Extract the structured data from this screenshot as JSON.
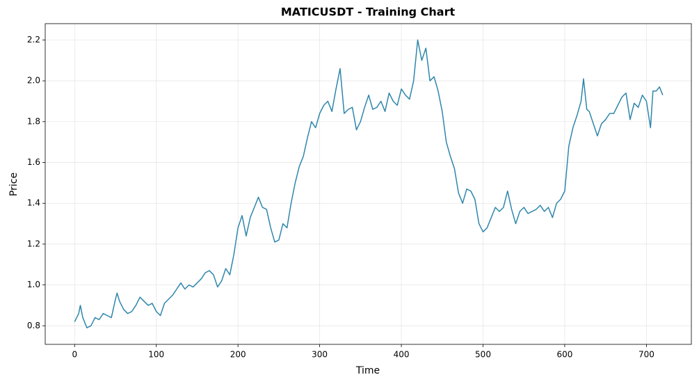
{
  "chart_data": {
    "type": "line",
    "title": "MATICUSDT - Training Chart",
    "x_label": "Time",
    "y_label": "Price",
    "color": "#2e86ab",
    "grid": true,
    "xlim": [
      -36,
      755
    ],
    "ylim": [
      0.709,
      2.28
    ],
    "xticks": [
      0,
      100,
      200,
      300,
      400,
      500,
      600,
      700
    ],
    "yticks": [
      0.8,
      {
        "value": 1.0,
        "label": "1.0"
      },
      1.2,
      1.4,
      1.6,
      1.8,
      {
        "value": 2.0,
        "label": "2.0"
      },
      2.2
    ],
    "x": [
      0,
      5,
      7,
      10,
      15,
      20,
      25,
      30,
      35,
      40,
      45,
      50,
      52,
      55,
      60,
      65,
      70,
      75,
      80,
      85,
      90,
      95,
      100,
      105,
      110,
      115,
      120,
      125,
      130,
      135,
      140,
      145,
      150,
      155,
      160,
      165,
      170,
      175,
      180,
      185,
      190,
      195,
      200,
      205,
      210,
      215,
      220,
      225,
      230,
      235,
      240,
      245,
      250,
      255,
      260,
      265,
      270,
      275,
      280,
      285,
      290,
      295,
      300,
      305,
      310,
      315,
      320,
      325,
      330,
      335,
      340,
      345,
      350,
      355,
      360,
      365,
      370,
      375,
      380,
      385,
      390,
      395,
      400,
      405,
      410,
      415,
      420,
      425,
      430,
      435,
      440,
      445,
      450,
      455,
      460,
      465,
      470,
      475,
      480,
      485,
      490,
      495,
      500,
      505,
      510,
      515,
      520,
      525,
      530,
      535,
      540,
      545,
      550,
      555,
      560,
      565,
      570,
      575,
      580,
      585,
      590,
      595,
      600,
      605,
      610,
      615,
      620,
      623,
      627,
      630,
      635,
      640,
      645,
      650,
      655,
      660,
      665,
      670,
      675,
      680,
      685,
      690,
      695,
      700,
      705,
      708,
      712,
      716,
      720
    ],
    "values": [
      0.82,
      0.86,
      0.9,
      0.84,
      0.79,
      0.8,
      0.84,
      0.83,
      0.86,
      0.85,
      0.84,
      0.93,
      0.96,
      0.92,
      0.88,
      0.86,
      0.87,
      0.9,
      0.94,
      0.92,
      0.9,
      0.91,
      0.87,
      0.85,
      0.91,
      0.93,
      0.95,
      0.98,
      1.01,
      0.98,
      1.0,
      0.99,
      1.01,
      1.03,
      1.06,
      1.07,
      1.05,
      0.99,
      1.02,
      1.08,
      1.05,
      1.15,
      1.28,
      1.34,
      1.24,
      1.33,
      1.38,
      1.43,
      1.38,
      1.37,
      1.28,
      1.21,
      1.22,
      1.3,
      1.28,
      1.4,
      1.5,
      1.58,
      1.63,
      1.72,
      1.8,
      1.77,
      1.84,
      1.88,
      1.9,
      1.85,
      1.96,
      2.06,
      1.84,
      1.86,
      1.87,
      1.76,
      1.8,
      1.87,
      1.93,
      1.86,
      1.87,
      1.9,
      1.85,
      1.94,
      1.9,
      1.88,
      1.96,
      1.93,
      1.91,
      2.0,
      2.2,
      2.1,
      2.16,
      2.0,
      2.02,
      1.95,
      1.85,
      1.7,
      1.63,
      1.57,
      1.45,
      1.4,
      1.47,
      1.46,
      1.42,
      1.3,
      1.26,
      1.28,
      1.33,
      1.38,
      1.36,
      1.38,
      1.46,
      1.37,
      1.3,
      1.36,
      1.38,
      1.35,
      1.36,
      1.37,
      1.39,
      1.36,
      1.38,
      1.33,
      1.4,
      1.42,
      1.46,
      1.68,
      1.77,
      1.83,
      1.9,
      2.01,
      1.86,
      1.85,
      1.79,
      1.73,
      1.79,
      1.81,
      1.84,
      1.84,
      1.88,
      1.92,
      1.94,
      1.81,
      1.89,
      1.87,
      1.93,
      1.9,
      1.77,
      1.95,
      1.95,
      1.97,
      1.93
    ]
  }
}
